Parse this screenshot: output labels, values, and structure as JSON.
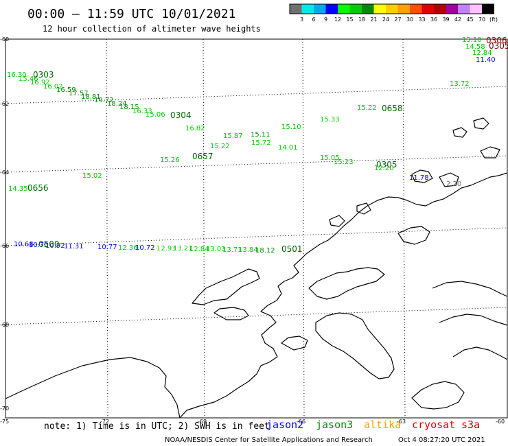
{
  "header": {
    "title": "00:00 – 11:59 UTC 10/01/2021",
    "subtitle": "12 hour collection of altimeter wave heights"
  },
  "colorbar": {
    "colors": [
      "#707070",
      "#00e8e8",
      "#00a8f0",
      "#0000ff",
      "#00ff00",
      "#00cc00",
      "#008800",
      "#ffff00",
      "#ffd000",
      "#ffa000",
      "#ff5000",
      "#e00000",
      "#b00000",
      "#a000a0",
      "#c080ff",
      "#ffc0ff",
      "#000000"
    ],
    "labels": [
      "3",
      "6",
      "9",
      "12",
      "15",
      "18",
      "21",
      "24",
      "27",
      "30",
      "33",
      "36",
      "39",
      "42",
      "45",
      "70"
    ],
    "unit": "(ft)"
  },
  "axes": {
    "lat_labels": [
      "-60",
      "-62",
      "-64",
      "-66",
      "-68",
      "-70"
    ],
    "lon_labels": [
      "-75",
      "-72",
      "-69",
      "-66",
      "-63",
      "-60"
    ]
  },
  "tracks": {
    "t1": {
      "label_a": "0303",
      "label_b": "0304",
      "values": [
        "16.30",
        "15.46",
        "16.92",
        "16.02",
        "16.59",
        "17.57",
        "18.81",
        "19.72",
        "18.24",
        "18.15",
        "16.33",
        "15.06",
        "16.82",
        "15.87",
        "15.11",
        "15.72",
        "14.01",
        "15.05",
        "15.23",
        "12.20"
      ]
    },
    "t2": {
      "label_a": "0656",
      "label_b": "0657",
      "label_c": "0658",
      "values": [
        "14.35",
        "15.02",
        "15.26",
        "15.22",
        "15.10",
        "15.33",
        "15.22",
        "13.10",
        "13.72",
        "14.58",
        "12.84"
      ]
    },
    "t3": {
      "label_a": "0305",
      "values": [
        "11.78",
        "2.20",
        "11.40"
      ]
    },
    "t4": {
      "label_a": "0500",
      "label_b": "0501",
      "values": [
        "10.68",
        "10.70",
        "10.92",
        "11.31",
        "10.77",
        "12.36",
        "10.72",
        "12.93",
        "13.21",
        "12.84",
        "13.03",
        "13.71",
        "13.84",
        "18.12"
      ]
    },
    "t5": {
      "label_a": "0306",
      "label_b": "0305"
    }
  },
  "footer": {
    "note": "note: 1) Time is in UTC; 2) SWH is in feet",
    "satellites": [
      {
        "name": "jason2",
        "color": "#0000ff"
      },
      {
        "name": "jason3",
        "color": "#008800"
      },
      {
        "name": "altika",
        "color": "#ffa000"
      },
      {
        "name": "cryosat",
        "color": "#e00000"
      },
      {
        "name": "s3a",
        "color": "#b00000"
      }
    ],
    "credit": "NOAA/NESDIS Center for Satellite Applications and Research",
    "timestamp": "Oct  4 08:27:20 UTC 2021"
  }
}
